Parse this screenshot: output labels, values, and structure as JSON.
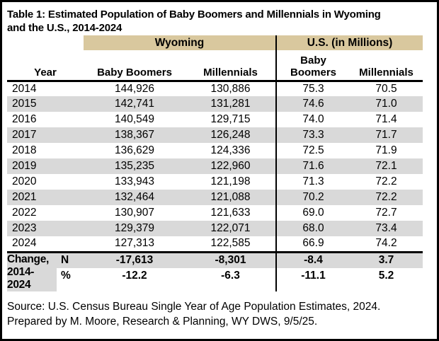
{
  "title": {
    "line1": "Table 1: Estimated Population of Baby Boomers and Millennials in Wyoming",
    "line2": "and the U.S., 2014-2024"
  },
  "table": {
    "group_headers": {
      "wyoming": "Wyoming",
      "us": "U.S. (in Millions)"
    },
    "column_headers": {
      "year": "Year",
      "wy_boomers": "Baby Boomers",
      "wy_millennials": "Millennials",
      "us_boomers": "Baby Boomers",
      "us_millennials": "Millennials"
    },
    "rows": [
      {
        "year": "2014",
        "wy_bb": "144,926",
        "wy_m": "130,886",
        "us_bb": "75.3",
        "us_m": "70.5"
      },
      {
        "year": "2015",
        "wy_bb": "142,741",
        "wy_m": "131,281",
        "us_bb": "74.6",
        "us_m": "71.0"
      },
      {
        "year": "2016",
        "wy_bb": "140,549",
        "wy_m": "129,715",
        "us_bb": "74.0",
        "us_m": "71.4"
      },
      {
        "year": "2017",
        "wy_bb": "138,367",
        "wy_m": "126,248",
        "us_bb": "73.3",
        "us_m": "71.7"
      },
      {
        "year": "2018",
        "wy_bb": "136,629",
        "wy_m": "124,336",
        "us_bb": "72.5",
        "us_m": "71.9"
      },
      {
        "year": "2019",
        "wy_bb": "135,235",
        "wy_m": "122,960",
        "us_bb": "71.6",
        "us_m": "72.1"
      },
      {
        "year": "2020",
        "wy_bb": "133,943",
        "wy_m": "121,198",
        "us_bb": "71.3",
        "us_m": "72.2"
      },
      {
        "year": "2021",
        "wy_bb": "132,464",
        "wy_m": "121,088",
        "us_bb": "70.2",
        "us_m": "72.2"
      },
      {
        "year": "2022",
        "wy_bb": "130,907",
        "wy_m": "121,633",
        "us_bb": "69.0",
        "us_m": "72.7"
      },
      {
        "year": "2023",
        "wy_bb": "129,379",
        "wy_m": "122,071",
        "us_bb": "68.0",
        "us_m": "73.4"
      },
      {
        "year": "2024",
        "wy_bb": "127,313",
        "wy_m": "122,585",
        "us_bb": "66.9",
        "us_m": "74.2"
      }
    ],
    "change": {
      "label": "Change, 2014-2024",
      "n_label": "N",
      "pct_label": "%",
      "n": {
        "wy_bb": "-17,613",
        "wy_m": "-8,301",
        "us_bb": "-8.4",
        "us_m": "3.7"
      },
      "pct": {
        "wy_bb": "-12.2",
        "wy_m": "-6.3",
        "us_bb": "-11.1",
        "us_m": "5.2"
      }
    }
  },
  "footer": {
    "source": "Source: U.S. Census Bureau Single Year of Age Population Estimates, 2024.",
    "prepared": "Prepared by M. Moore, Research & Planning, WY DWS, 9/5/25."
  },
  "colors": {
    "group_header_bg": "#d9c89e",
    "stripe_bg": "#d9d9d9",
    "text": "#000000",
    "background": "#ffffff"
  },
  "chart_data": {
    "type": "table",
    "title": "Table 1: Estimated Population of Baby Boomers and Millennials in Wyoming and the U.S., 2014-2024",
    "column_groups": [
      "Wyoming",
      "U.S. (in Millions)"
    ],
    "columns": [
      "Year",
      "Wyoming Baby Boomers",
      "Wyoming Millennials",
      "U.S. Baby Boomers (millions)",
      "U.S. Millennials (millions)"
    ],
    "years": [
      2014,
      2015,
      2016,
      2017,
      2018,
      2019,
      2020,
      2021,
      2022,
      2023,
      2024
    ],
    "series": [
      {
        "name": "Wyoming Baby Boomers",
        "values": [
          144926,
          142741,
          140549,
          138367,
          136629,
          135235,
          133943,
          132464,
          130907,
          129379,
          127313
        ]
      },
      {
        "name": "Wyoming Millennials",
        "values": [
          130886,
          131281,
          129715,
          126248,
          124336,
          122960,
          121198,
          121088,
          121633,
          122071,
          122585
        ]
      },
      {
        "name": "U.S. Baby Boomers (millions)",
        "values": [
          75.3,
          74.6,
          74.0,
          73.3,
          72.5,
          71.6,
          71.3,
          70.2,
          69.0,
          68.0,
          66.9
        ]
      },
      {
        "name": "U.S. Millennials (millions)",
        "values": [
          70.5,
          71.0,
          71.4,
          71.7,
          71.9,
          72.1,
          72.2,
          72.2,
          72.7,
          73.4,
          74.2
        ]
      }
    ],
    "change_2014_2024": {
      "n": {
        "wyoming_baby_boomers": -17613,
        "wyoming_millennials": -8301,
        "us_baby_boomers": -8.4,
        "us_millennials": 3.7
      },
      "percent": {
        "wyoming_baby_boomers": -12.2,
        "wyoming_millennials": -6.3,
        "us_baby_boomers": -11.1,
        "us_millennials": 5.2
      }
    },
    "source": "U.S. Census Bureau Single Year of Age Population Estimates, 2024.",
    "prepared_by": "M. Moore, Research & Planning, WY DWS, 9/5/25."
  }
}
